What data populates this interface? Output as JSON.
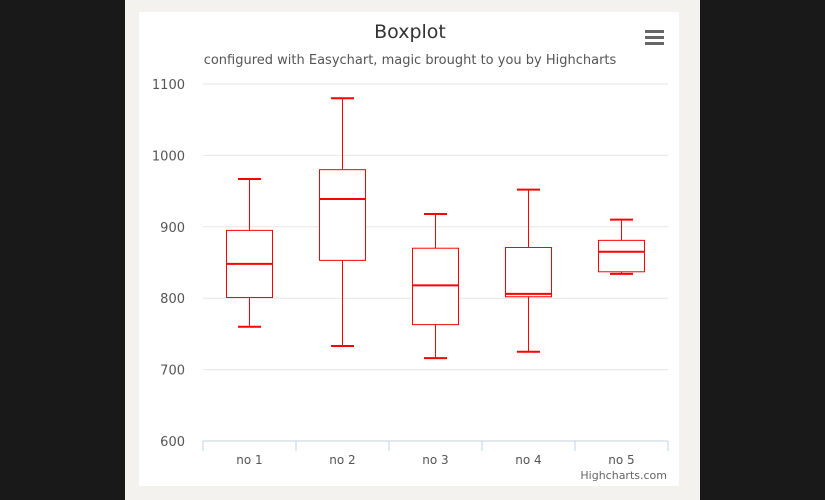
{
  "chart_data": {
    "type": "boxplot",
    "title": "Boxplot",
    "subtitle": "configured with Easychart, magic brought to you by Highcharts",
    "credits": "Highcharts.com",
    "ylim": [
      600,
      1100
    ],
    "yticks": [
      "600",
      "700",
      "800",
      "900",
      "1000",
      "1100"
    ],
    "categories": [
      "no 1",
      "no 2",
      "no 3",
      "no 4",
      "no 5"
    ],
    "boxes": [
      {
        "low": 760,
        "q1": 801,
        "median": 848,
        "q3": 895,
        "high": 967
      },
      {
        "low": 733,
        "q1": 853,
        "median": 939,
        "q3": 980,
        "high": 1080
      },
      {
        "low": 716,
        "q1": 763,
        "median": 818,
        "q3": 870,
        "high": 918
      },
      {
        "low": 725,
        "q1": 802,
        "median": 806,
        "q3": 871,
        "high": 952
      },
      {
        "low": 834,
        "q1": 837,
        "median": 865,
        "q3": 881,
        "high": 910
      }
    ],
    "color": "#ff0000",
    "grid": true
  },
  "menu_icon": "hamburger-menu-icon",
  "colors": {
    "grid": "#e6e6e6",
    "axis": "#c0d0e0",
    "box": "#ff0000"
  }
}
